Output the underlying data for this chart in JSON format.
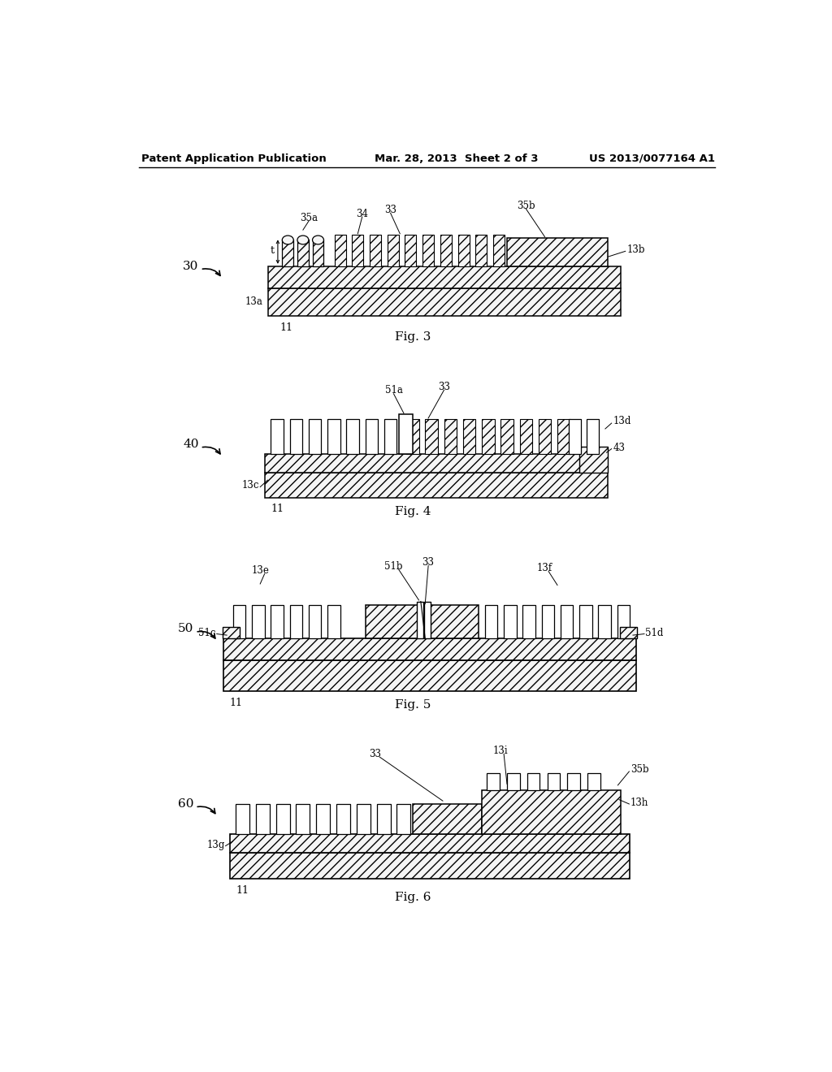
{
  "header_left": "Patent Application Publication",
  "header_mid": "Mar. 28, 2013  Sheet 2 of 3",
  "header_right": "US 2013/0077164 A1",
  "bg_color": "#ffffff",
  "fig3_caption": "Fig. 3",
  "fig4_caption": "Fig. 4",
  "fig5_caption": "Fig. 5",
  "fig6_caption": "Fig. 6"
}
